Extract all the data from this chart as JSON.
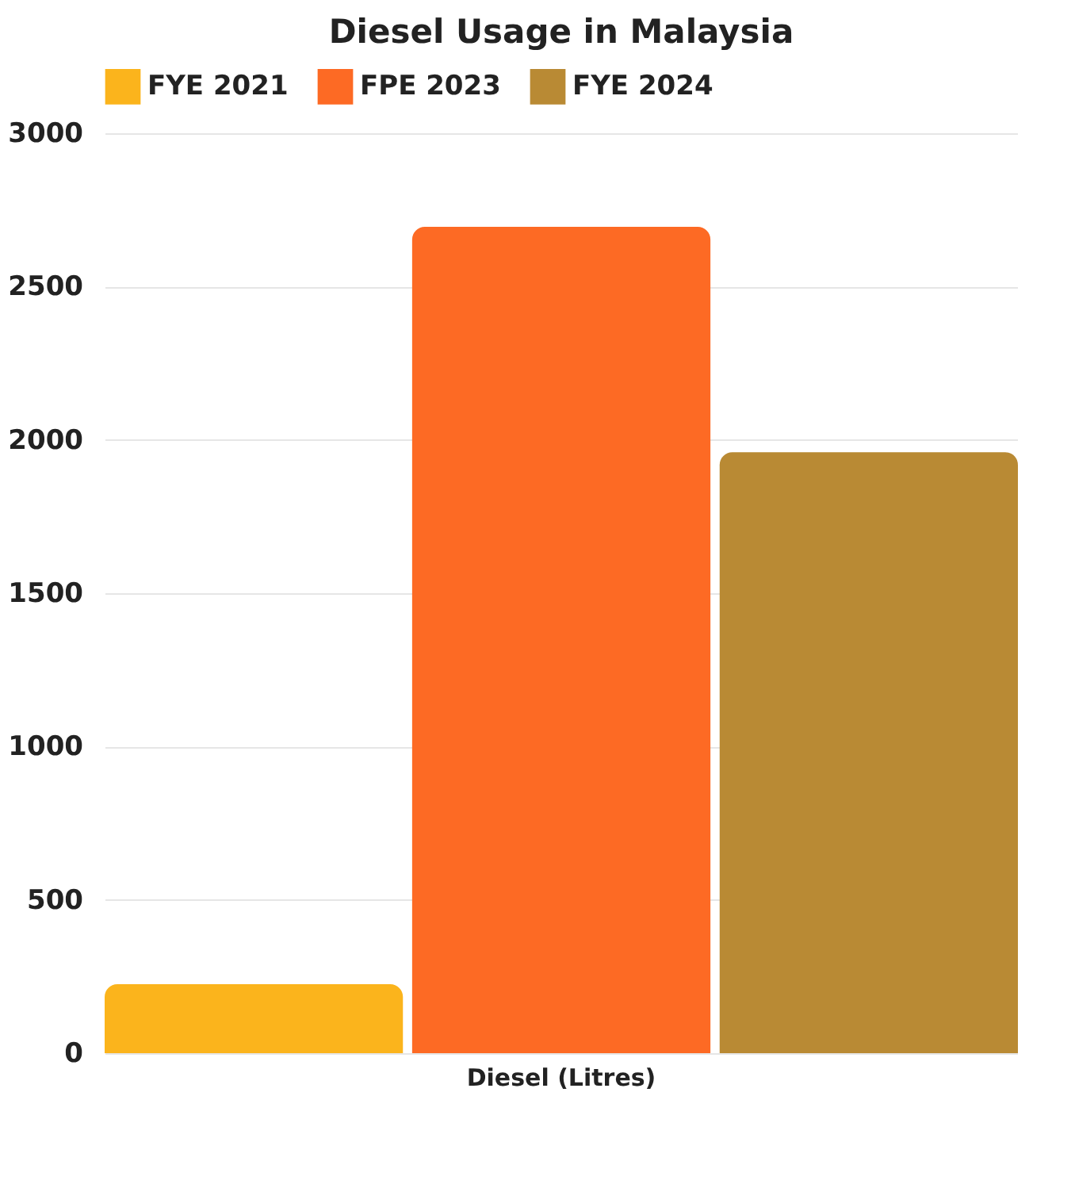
{
  "chart_data": {
    "type": "bar",
    "title": "Diesel Usage in Malaysia",
    "categories": [
      "Diesel (Litres)"
    ],
    "series": [
      {
        "name": "FYE 2021",
        "color": "#fbb41c",
        "values": [
          225
        ]
      },
      {
        "name": "FPE 2023",
        "color": "#fd6a24",
        "values": [
          2695
        ]
      },
      {
        "name": "FYE 2024",
        "color": "#b98a34",
        "values": [
          1960
        ]
      }
    ],
    "ylim": [
      0,
      3000
    ],
    "yticks": [
      0,
      500,
      1000,
      1500,
      2000,
      2500,
      3000
    ],
    "grid": "y",
    "legend": "top"
  }
}
